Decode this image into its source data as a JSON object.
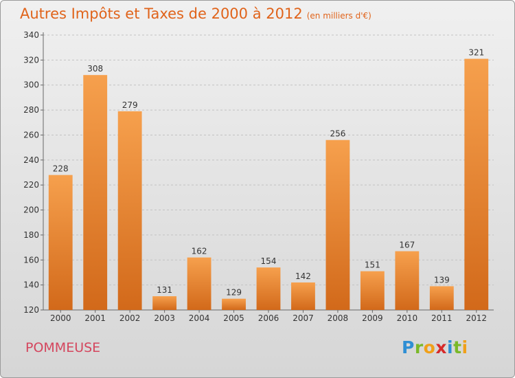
{
  "header": {
    "title": "Autres Impôts et Taxes de 2000 à 2012",
    "unit": "(en milliers d'€)"
  },
  "footer": {
    "commune": "POMMEUSE",
    "brand_letters": [
      "P",
      "r",
      "o",
      "x",
      "i",
      "t",
      "i"
    ],
    "brand_colors": [
      "#2f8fd4",
      "#7ab829",
      "#f0a019",
      "#d62a2a",
      "#2f8fd4",
      "#7ab829",
      "#f0a019"
    ]
  },
  "chart_data": {
    "type": "bar",
    "categories": [
      "2000",
      "2001",
      "2002",
      "2003",
      "2004",
      "2005",
      "2006",
      "2007",
      "2008",
      "2009",
      "2010",
      "2011",
      "2012"
    ],
    "values": [
      228,
      308,
      279,
      131,
      162,
      129,
      154,
      142,
      256,
      151,
      167,
      139,
      321
    ],
    "ylim": [
      120,
      340
    ],
    "yticks": [
      120,
      140,
      160,
      180,
      200,
      220,
      240,
      260,
      280,
      300,
      320,
      340
    ],
    "grid": "horizontal-dashed",
    "bar_color_light": "#f6a04d",
    "bar_color_dark": "#d2691a"
  }
}
